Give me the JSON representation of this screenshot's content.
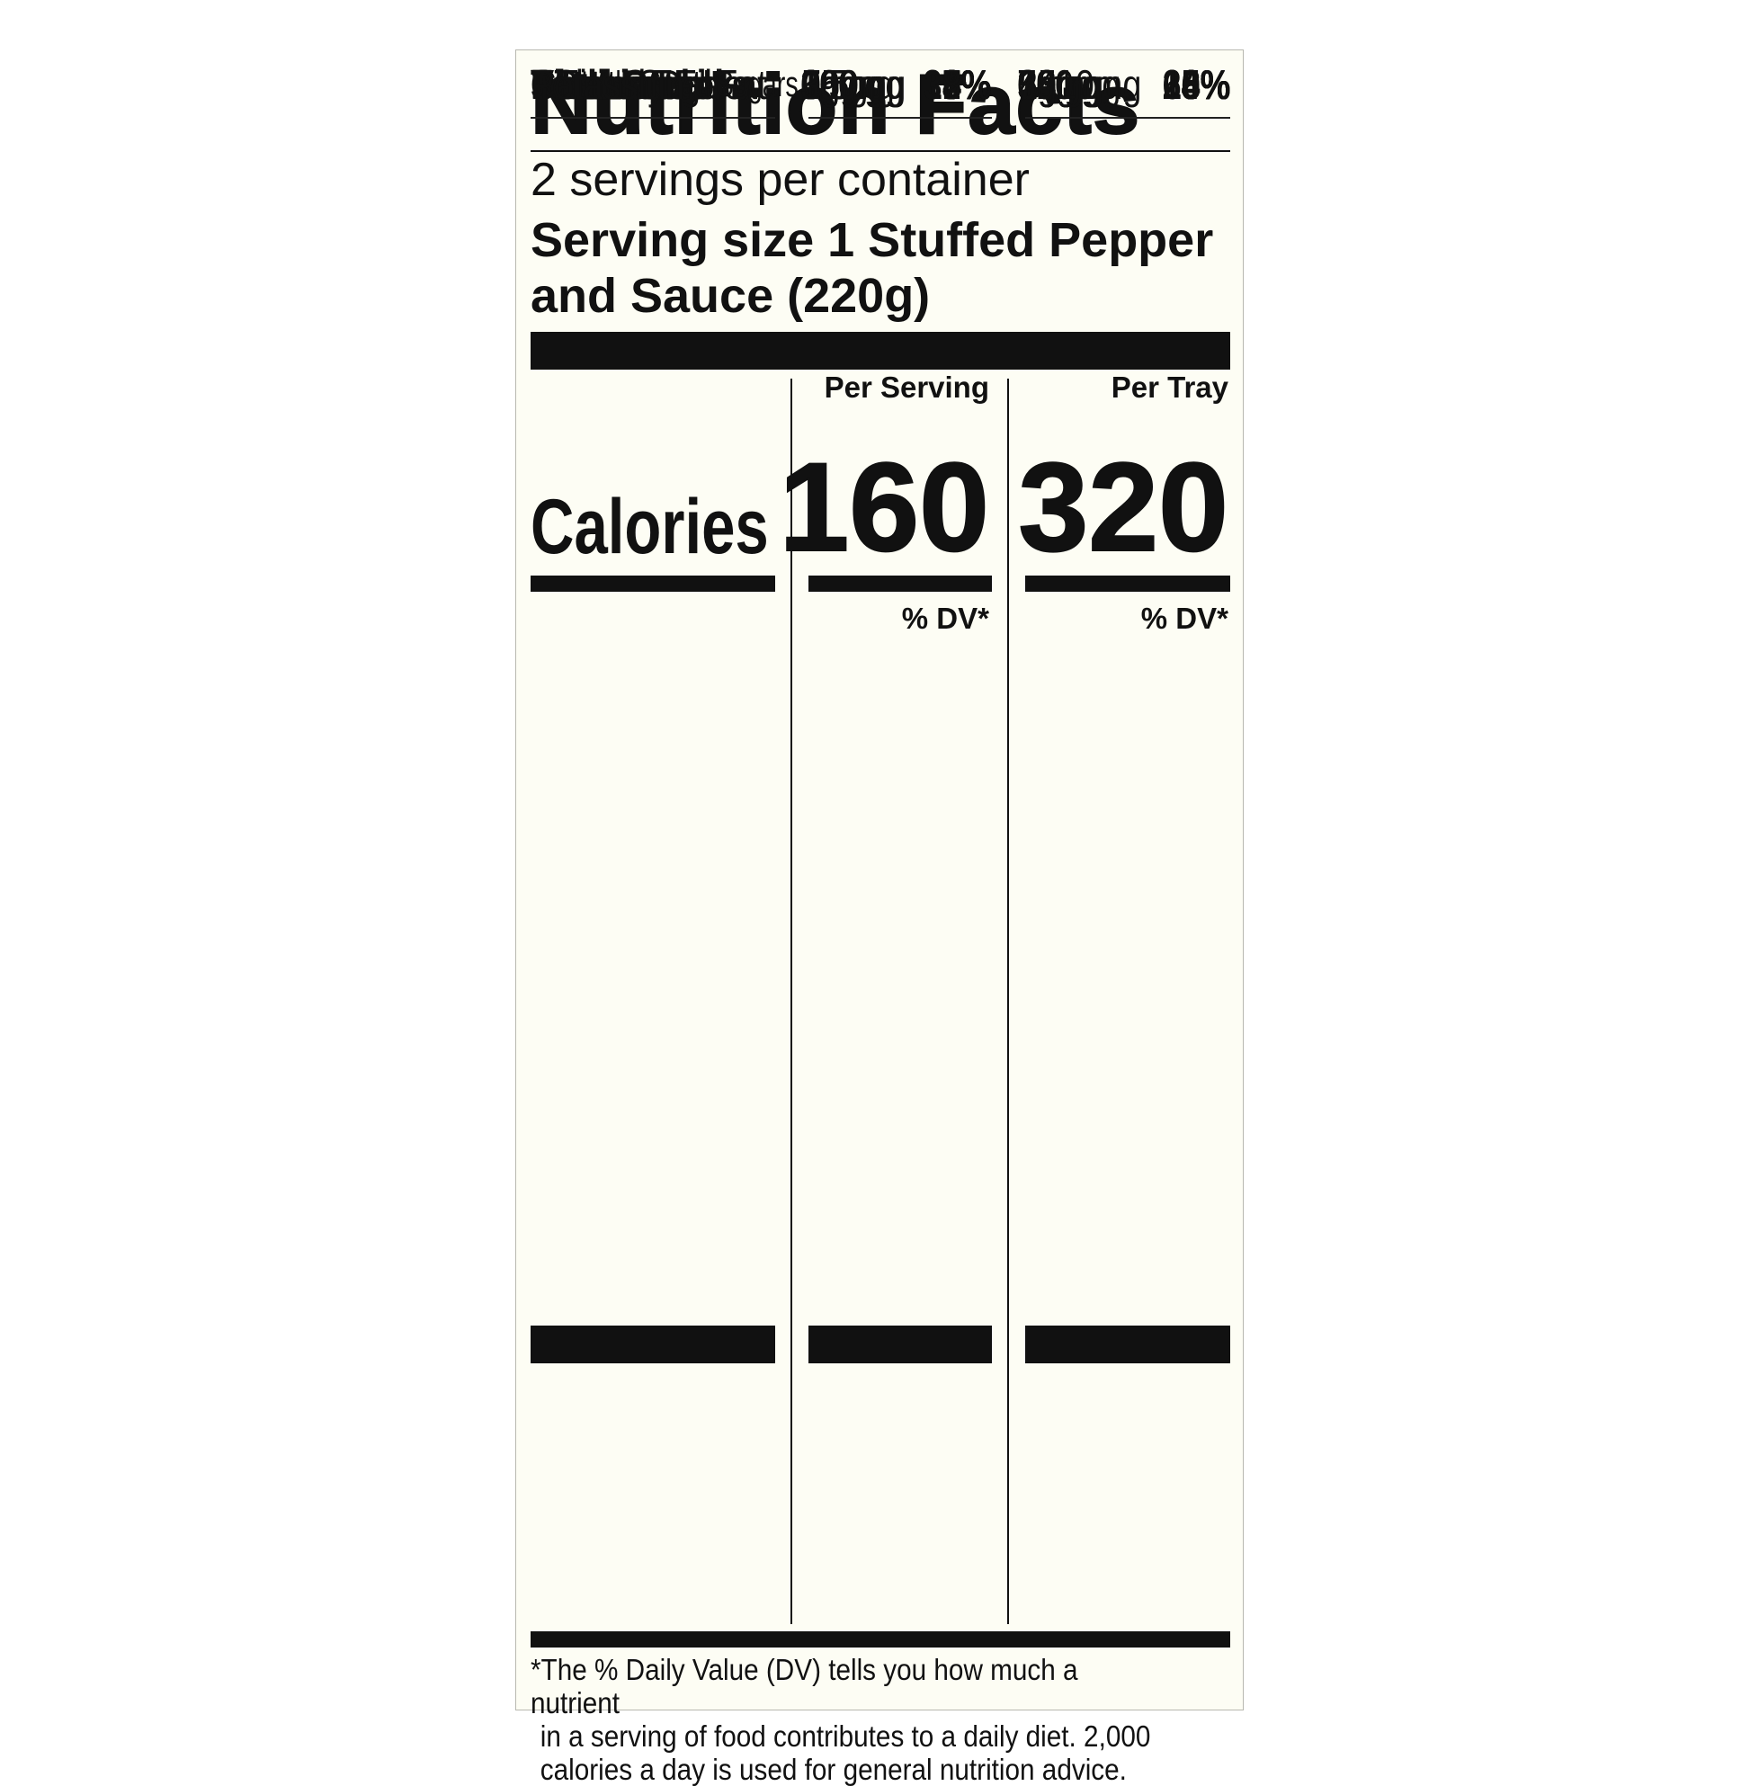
{
  "title": "Nutrition Facts",
  "servings_per_container": "2 servings per container",
  "serving_size_line1": "Serving size 1 Stuffed Pepper",
  "serving_size_line2": "and Sauce (220g)",
  "columns": {
    "per_serving": "Per Serving",
    "per_tray": "Per Tray"
  },
  "calories": {
    "label": "Calories",
    "per_serving": "160",
    "per_tray": "320"
  },
  "dv_header": "% DV*",
  "nutrients": [
    {
      "name": "Total Fat",
      "style": "bold",
      "serving_amount": "6g",
      "serving_dv": "8%",
      "tray_amount": "12g",
      "tray_dv": "15%"
    },
    {
      "name": "Saturated Fat",
      "style": "ind1",
      "serving_amount": "2.5g",
      "serving_dv": "13%",
      "tray_amount": "5g",
      "tray_dv": "25%"
    },
    {
      "name_italic": "Trans",
      "name": " Fat",
      "style": "ind1",
      "serving_amount": "0g",
      "serving_dv": "",
      "tray_amount": "1g",
      "tray_dv": ""
    },
    {
      "name": "Cholesterol",
      "style": "bold",
      "serving_amount": "15mg",
      "serving_dv": "5%",
      "tray_amount": "25mg",
      "tray_dv": "8%"
    },
    {
      "name": "Sodium",
      "style": "bold",
      "serving_amount": "750mg",
      "serving_dv": "33%",
      "tray_amount": "1510mg",
      "tray_dv": "66%"
    },
    {
      "name": "Total Carb.",
      "style": "bold",
      "serving_amount": "20g",
      "serving_dv": "7%",
      "tray_amount": "40g",
      "tray_dv": "15%"
    },
    {
      "name": "Dietary Fiber",
      "style": "ind1",
      "serving_amount": "2g",
      "serving_dv": "7%",
      "tray_amount": "4g",
      "tray_dv": "14%"
    },
    {
      "name": "Total Sugars",
      "style": "ind1",
      "serving_amount": "6g",
      "serving_dv": "",
      "tray_amount": "13g",
      "tray_dv": ""
    },
    {
      "name": "Incl. Added Sugars",
      "style": "ind2",
      "serving_amount": "2g",
      "serving_dv": "4%",
      "tray_amount": "4g",
      "tray_dv": "8%"
    },
    {
      "name": "Protein",
      "style": "bold",
      "serving_amount": "7g",
      "serving_dv": "8%",
      "tray_amount": "14g",
      "tray_dv": "16%"
    }
  ],
  "vitamins": [
    {
      "name": "Vitamin D",
      "serving_amount": "0mcg",
      "serving_dv": "0%",
      "tray_amount": "0mcg",
      "tray_dv": "0%"
    },
    {
      "name": "Calcium",
      "serving_amount": "30mg",
      "serving_dv": "2%",
      "tray_amount": "70mg",
      "tray_dv": "6%"
    },
    {
      "name": "Iron",
      "serving_amount": "1.5mg",
      "serving_dv": "8%",
      "tray_amount": "3mg",
      "tray_dv": "15%"
    },
    {
      "name": "Potassium",
      "serving_amount": "390mg",
      "serving_dv": "8%",
      "tray_amount": "790mg",
      "tray_dv": "15%"
    }
  ],
  "footnote_lines": [
    "*The % Daily Value (DV) tells you how much a nutrient",
    "in a serving of food contributes to a daily diet. 2,000",
    "calories a day is used for general nutrition advice."
  ]
}
